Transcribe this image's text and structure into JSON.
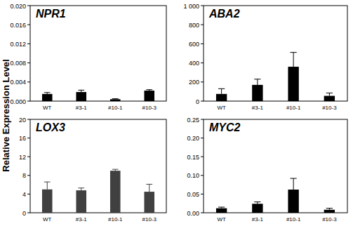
{
  "y_label": "Relative Expression Level",
  "chart_data": [
    {
      "type": "bar",
      "title": "NPR1",
      "categories": [
        "WT",
        "#3-1",
        "#10-1",
        "#10-3"
      ],
      "values": [
        0.0015,
        0.0019,
        0.0004,
        0.0022
      ],
      "errors": [
        0.0003,
        0.0004,
        0.0001,
        0.0002
      ],
      "color": "#000000",
      "ylim": [
        0,
        0.02
      ],
      "yticks": [
        {
          "value": 0,
          "label": "0.000"
        },
        {
          "value": 0.004,
          "label": "0.004"
        },
        {
          "value": 0.008,
          "label": "0.008"
        },
        {
          "value": 0.012,
          "label": "0.012"
        },
        {
          "value": 0.016,
          "label": "0.016"
        },
        {
          "value": 0.02,
          "label": "0.020"
        }
      ]
    },
    {
      "type": "bar",
      "title": "ABA2",
      "categories": [
        "WT",
        "#3-1",
        "#10-1",
        "#10-3"
      ],
      "values": [
        75,
        170,
        360,
        55
      ],
      "errors": [
        55,
        60,
        150,
        30
      ],
      "color": "#000000",
      "ylim": [
        0,
        1000
      ],
      "yticks": [
        0,
        200,
        400,
        600,
        800,
        {
          "value": 1000,
          "label": "1 000"
        }
      ]
    },
    {
      "type": "bar",
      "title": "LOX3",
      "categories": [
        "WT",
        "#3-1",
        "#10-1",
        "#10-3"
      ],
      "values": [
        5.0,
        4.8,
        9.0,
        4.5
      ],
      "errors": [
        1.6,
        0.5,
        0.3,
        1.6
      ],
      "color": "#404040",
      "ylim": [
        0,
        20
      ],
      "yticks": [
        0,
        4,
        8,
        12,
        16,
        20
      ]
    },
    {
      "type": "bar",
      "title": "MYC2",
      "categories": [
        "WT",
        "#3-1",
        "#10-1",
        "#10-3"
      ],
      "values": [
        0.012,
        0.024,
        0.062,
        0.008
      ],
      "errors": [
        0.003,
        0.005,
        0.03,
        0.004
      ],
      "color": "#000000",
      "ylim": [
        0,
        0.25
      ],
      "yticks": [
        {
          "value": 0,
          "label": "0.00"
        },
        {
          "value": 0.05,
          "label": "0.05"
        },
        {
          "value": 0.1,
          "label": "0.10"
        },
        {
          "value": 0.15,
          "label": "0.15"
        },
        {
          "value": 0.2,
          "label": "0.20"
        },
        {
          "value": 0.25,
          "label": "0.25"
        }
      ]
    }
  ]
}
